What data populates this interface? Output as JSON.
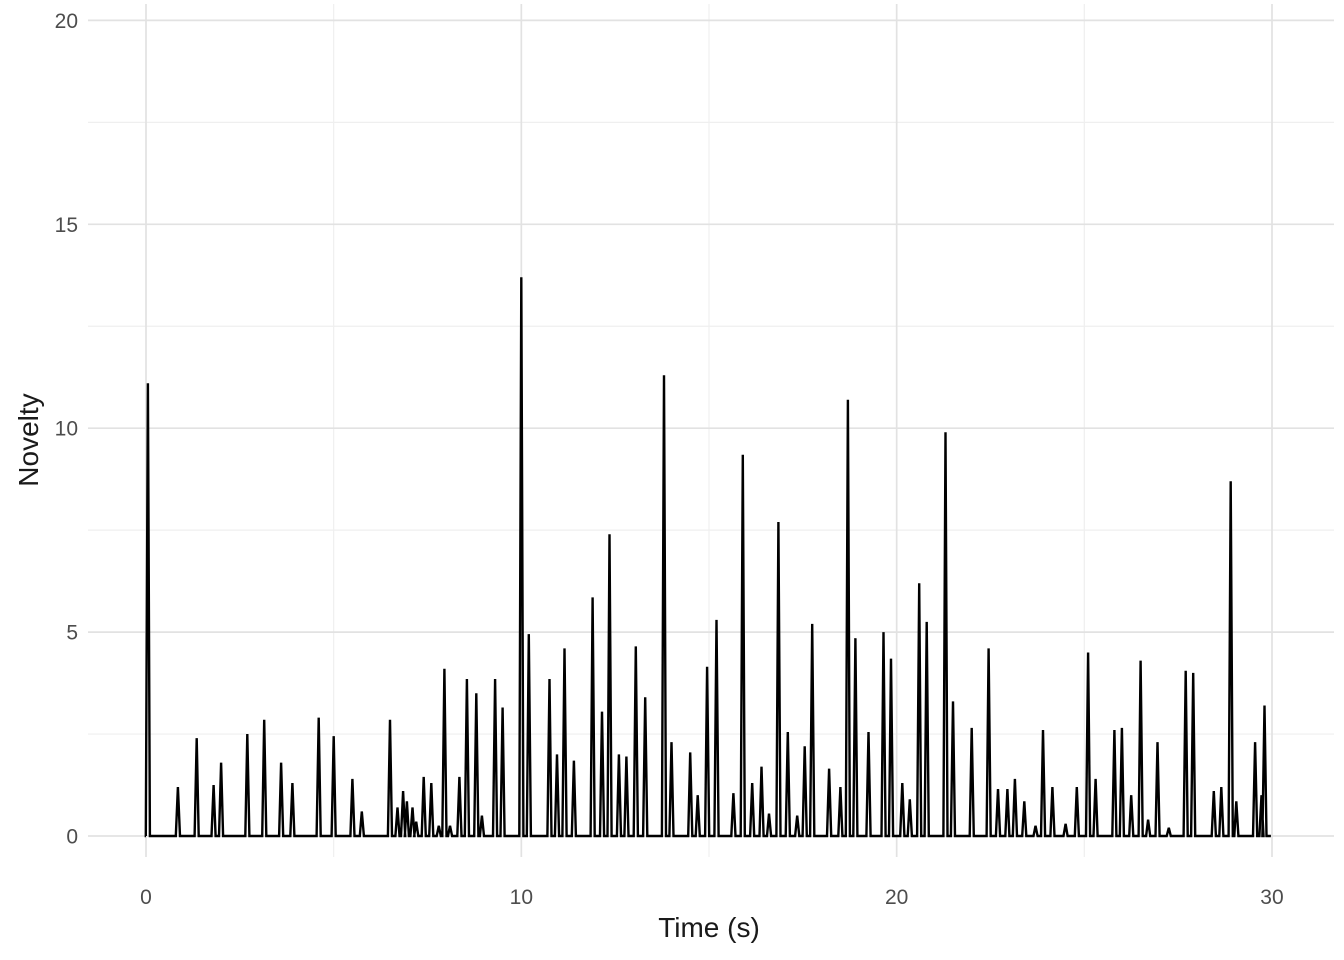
{
  "chart_data": {
    "type": "line",
    "title": "",
    "xlabel": "Time (s)",
    "ylabel": "Novelty",
    "x_ticks": [
      0,
      10,
      20,
      30
    ],
    "x_minor_gridlines": [
      5,
      15,
      25
    ],
    "y_ticks": [
      0,
      5,
      10,
      15,
      20
    ],
    "y_minor_gridlines": [
      2.5,
      7.5,
      12.5,
      17.5
    ],
    "xlim": [
      -1.5,
      31.7
    ],
    "ylim": [
      0,
      20
    ],
    "grid": "major+minor",
    "legend_position": "none",
    "colors": {
      "line": "#000000",
      "grid_major": "#e2e2e2",
      "grid_minor": "#efefef",
      "tick_label": "#4d4d4d",
      "axis_title": "#1a1a1a",
      "background": "#ffffff"
    },
    "series": [
      {
        "name": "novelty",
        "baseline": 0,
        "x_start": 0,
        "x_end": 29.97,
        "spikes": [
          [
            0.05,
            11.1
          ],
          [
            0.85,
            1.2
          ],
          [
            1.35,
            2.4
          ],
          [
            1.8,
            1.25
          ],
          [
            2.0,
            1.8
          ],
          [
            2.7,
            2.5
          ],
          [
            3.15,
            2.85
          ],
          [
            3.6,
            1.8
          ],
          [
            3.9,
            1.3
          ],
          [
            4.6,
            2.9
          ],
          [
            5.0,
            2.45
          ],
          [
            5.5,
            1.4
          ],
          [
            5.75,
            0.6
          ],
          [
            6.5,
            2.85
          ],
          [
            6.7,
            0.7
          ],
          [
            6.85,
            1.1
          ],
          [
            6.95,
            0.85
          ],
          [
            7.1,
            0.7
          ],
          [
            7.2,
            0.35
          ],
          [
            7.4,
            1.45
          ],
          [
            7.6,
            1.3
          ],
          [
            7.8,
            0.25
          ],
          [
            7.95,
            4.1
          ],
          [
            8.1,
            0.25
          ],
          [
            8.35,
            1.45
          ],
          [
            8.55,
            3.85
          ],
          [
            8.8,
            3.5
          ],
          [
            8.95,
            0.5
          ],
          [
            9.3,
            3.85
          ],
          [
            9.5,
            3.15
          ],
          [
            10.0,
            13.7
          ],
          [
            10.2,
            4.95
          ],
          [
            10.75,
            3.85
          ],
          [
            10.95,
            2.0
          ],
          [
            11.15,
            4.6
          ],
          [
            11.4,
            1.85
          ],
          [
            11.9,
            5.85
          ],
          [
            12.15,
            3.05
          ],
          [
            12.35,
            7.4
          ],
          [
            12.6,
            2.0
          ],
          [
            12.8,
            1.95
          ],
          [
            13.05,
            4.65
          ],
          [
            13.3,
            3.4
          ],
          [
            13.8,
            11.3
          ],
          [
            14.0,
            2.3
          ],
          [
            14.5,
            2.05
          ],
          [
            14.7,
            1.0
          ],
          [
            14.95,
            4.15
          ],
          [
            15.2,
            5.3
          ],
          [
            15.65,
            1.05
          ],
          [
            15.9,
            9.35
          ],
          [
            16.15,
            1.3
          ],
          [
            16.4,
            1.7
          ],
          [
            16.6,
            0.55
          ],
          [
            16.85,
            7.7
          ],
          [
            17.1,
            2.55
          ],
          [
            17.35,
            0.5
          ],
          [
            17.55,
            2.2
          ],
          [
            17.75,
            5.2
          ],
          [
            18.2,
            1.65
          ],
          [
            18.5,
            1.2
          ],
          [
            18.7,
            10.7
          ],
          [
            18.9,
            4.85
          ],
          [
            19.25,
            2.55
          ],
          [
            19.65,
            5.0
          ],
          [
            19.85,
            4.35
          ],
          [
            20.15,
            1.3
          ],
          [
            20.35,
            0.9
          ],
          [
            20.6,
            6.2
          ],
          [
            20.8,
            5.25
          ],
          [
            21.3,
            9.9
          ],
          [
            21.5,
            3.3
          ],
          [
            22.0,
            2.65
          ],
          [
            22.45,
            4.6
          ],
          [
            22.7,
            1.15
          ],
          [
            22.95,
            1.15
          ],
          [
            23.15,
            1.4
          ],
          [
            23.4,
            0.85
          ],
          [
            23.7,
            0.25
          ],
          [
            23.9,
            2.6
          ],
          [
            24.15,
            1.2
          ],
          [
            24.5,
            0.3
          ],
          [
            24.8,
            1.2
          ],
          [
            25.1,
            4.5
          ],
          [
            25.3,
            1.4
          ],
          [
            25.8,
            2.6
          ],
          [
            26.0,
            2.65
          ],
          [
            26.25,
            1.0
          ],
          [
            26.5,
            4.3
          ],
          [
            26.7,
            0.4
          ],
          [
            26.95,
            2.3
          ],
          [
            27.25,
            0.2
          ],
          [
            27.7,
            4.05
          ],
          [
            27.9,
            4.0
          ],
          [
            28.45,
            1.1
          ],
          [
            28.65,
            1.2
          ],
          [
            28.9,
            8.7
          ],
          [
            29.05,
            0.85
          ],
          [
            29.55,
            2.3
          ],
          [
            29.72,
            1.0
          ],
          [
            29.8,
            3.2
          ]
        ]
      }
    ]
  }
}
